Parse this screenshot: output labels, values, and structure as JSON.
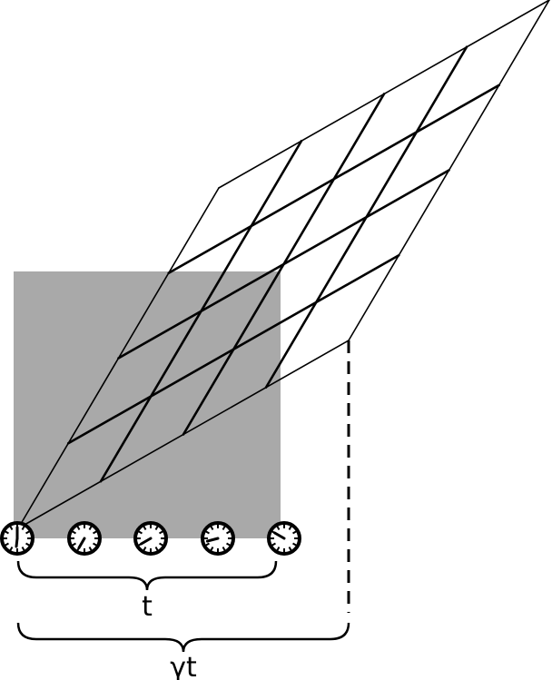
{
  "colors": {
    "square_fill": "#a9a9a9",
    "stroke": "#000000",
    "clock_face": "#ffffff"
  },
  "grid": {
    "rows": 4,
    "cols": 4
  },
  "clocks": [
    {
      "hand_angle_deg": 0
    },
    {
      "hand_angle_deg": 210
    },
    {
      "hand_angle_deg": 240
    },
    {
      "hand_angle_deg": 255
    },
    {
      "hand_angle_deg": 300
    }
  ],
  "labels": {
    "short_brace": "t",
    "long_brace": "γt"
  }
}
